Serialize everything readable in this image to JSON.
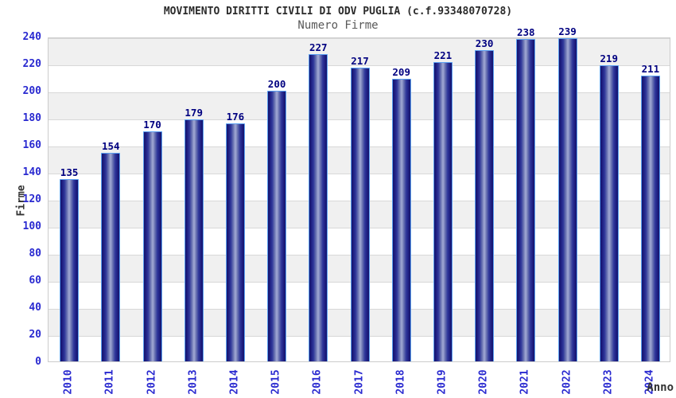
{
  "chart_data": {
    "type": "bar",
    "title": "MOVIMENTO DIRITTI CIVILI DI ODV PUGLIA (c.f.93348070728)",
    "subtitle": "Numero Firme",
    "xlabel": "Anno",
    "ylabel": "Firme",
    "categories": [
      "2010",
      "2011",
      "2012",
      "2013",
      "2014",
      "2015",
      "2016",
      "2017",
      "2018",
      "2019",
      "2020",
      "2021",
      "2022",
      "2023",
      "2024"
    ],
    "values": [
      135,
      154,
      170,
      179,
      176,
      200,
      227,
      217,
      209,
      221,
      230,
      238,
      239,
      219,
      211
    ],
    "ylim": [
      0,
      240
    ],
    "ytick_step": 20,
    "grid": true,
    "legend": false,
    "value_labels_shown": true,
    "colors": {
      "tick_label": "#2a2ad0",
      "value_label": "#000080",
      "bar_dark": "#15156b",
      "bar_light": "#9ba3d0",
      "bar_border": "#5ba0f2",
      "band_gray": "#f0f0f0",
      "band_white": "#ffffff",
      "gridline": "#d8d8d8",
      "title_text": "#2b2b2b",
      "subtitle_text": "#595959",
      "axis_title_text": "#333333"
    }
  }
}
